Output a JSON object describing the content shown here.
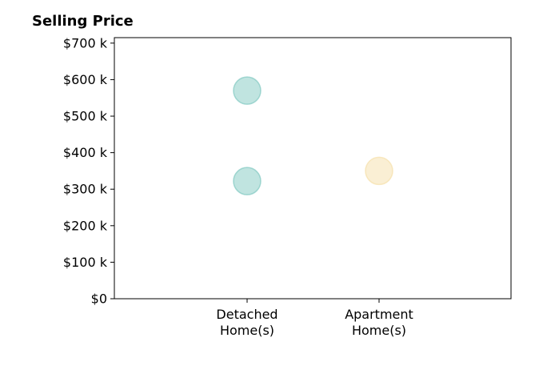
{
  "chart_data": {
    "type": "scatter",
    "title": "Selling Price",
    "xlabel": "",
    "ylabel": "",
    "categories": [
      [
        "Detached",
        "Home(s)"
      ],
      [
        "Apartment",
        "Home(s)"
      ]
    ],
    "points": [
      {
        "category": 0,
        "value": 570000,
        "color": "#82c9c2"
      },
      {
        "category": 0,
        "value": 322000,
        "color": "#82c9c2"
      },
      {
        "category": 1,
        "value": 350000,
        "color": "#f5dfaa"
      }
    ],
    "ylim": [
      0,
      715000
    ],
    "yticks": [
      0,
      100000,
      200000,
      300000,
      400000,
      500000,
      600000,
      700000
    ],
    "ytick_labels": [
      "$0",
      "$100 k",
      "$200 k",
      "$300 k",
      "$400 k",
      "$500 k",
      "$600 k",
      "$700 k"
    ],
    "grid": false,
    "legend": "none"
  }
}
